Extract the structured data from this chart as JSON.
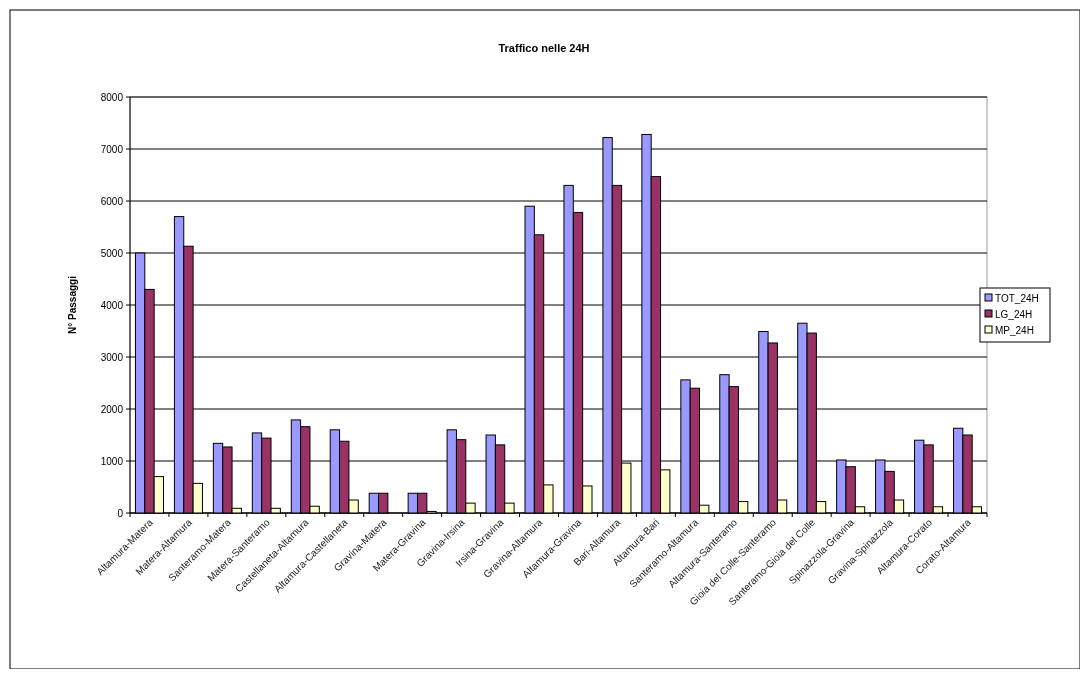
{
  "chart_data": {
    "type": "bar",
    "title": "Traffico nelle 24H",
    "ylabel": "N° Passaggi",
    "categories": [
      "Altamura-Matera",
      "Matera-Altamura",
      "Santeramo-Matera",
      "Matera-Santeramo",
      "Castellaneta-Altamura",
      "Altamura-Castellaneta",
      "Gravina-Matera",
      "Matera-Gravina",
      "Gravina-Irsina",
      "Irsina-Gravina",
      "Gravina-Altamura",
      "Altamura-Gravina",
      "Bari-Altamura",
      "Altamura-Bari",
      "Santeramo-Altamura",
      "Altamura-Santeramo",
      "Gioia del Colle-Santeramo",
      "Santeramo-Gioia del Colle",
      "Spinazzola-Gravina",
      "Gravina-Spinazzola",
      "Altamura-Corato",
      "Corato-Altamura"
    ],
    "series": [
      {
        "name": "TOT_24H",
        "color": "#9999ff",
        "values": [
          5000,
          5700,
          1340,
          1540,
          1790,
          1600,
          380,
          380,
          1600,
          1500,
          5900,
          6300,
          7220,
          7280,
          2560,
          2660,
          3490,
          3650,
          1020,
          1020,
          1400,
          1630
        ]
      },
      {
        "name": "LG_24H",
        "color": "#993366",
        "values": [
          4300,
          5130,
          1270,
          1440,
          1660,
          1380,
          380,
          380,
          1410,
          1310,
          5350,
          5780,
          6300,
          6470,
          2400,
          2430,
          3270,
          3460,
          890,
          800,
          1310,
          1500
        ]
      },
      {
        "name": "MP_24H",
        "color": "#ffffcc",
        "values": [
          700,
          570,
          90,
          90,
          130,
          250,
          0,
          30,
          190,
          190,
          540,
          520,
          960,
          830,
          150,
          220,
          250,
          220,
          120,
          250,
          120,
          120
        ]
      }
    ],
    "ylim": [
      0,
      8000
    ],
    "yticks": [
      0,
      1000,
      2000,
      3000,
      4000,
      5000,
      6000,
      7000,
      8000
    ],
    "grid": "y",
    "legend": "right"
  }
}
